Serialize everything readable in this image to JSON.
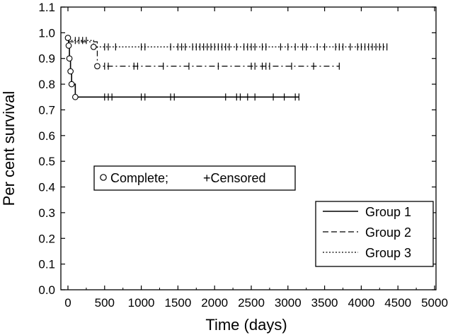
{
  "chart_data": {
    "type": "line",
    "title": "",
    "xlabel": "Time (days)",
    "ylabel": "Per cent survival",
    "xlim": [
      0,
      5000
    ],
    "ylim": [
      0,
      1.1
    ],
    "xticks": [
      0,
      500,
      1000,
      1500,
      2000,
      2500,
      3000,
      3500,
      4000,
      4500,
      5000
    ],
    "yticks": [
      0.0,
      0.1,
      0.2,
      0.3,
      0.4,
      0.5,
      0.6,
      0.7,
      0.8,
      0.9,
      1.0,
      1.1
    ],
    "xtick_labels": [
      "0",
      "500",
      "1000",
      "1500",
      "2000",
      "2500",
      "3000",
      "3500",
      "4000",
      "4500",
      "5000"
    ],
    "ytick_labels": [
      "0.0",
      "0.1",
      "0.2",
      "0.3",
      "0.4",
      "0.5",
      "0.6",
      "0.7",
      "0.8",
      "0.9",
      "1.0",
      "1.1"
    ],
    "grid": false,
    "marker_legend": {
      "complete_label": "Complete;",
      "censored_label": "+Censored",
      "placement": "center-left"
    },
    "legend": {
      "placement": "bottom-right"
    },
    "series": [
      {
        "name": "Group 1",
        "linestyle": "solid",
        "steps": [
          [
            0,
            0.98
          ],
          [
            10,
            0.95
          ],
          [
            20,
            0.9
          ],
          [
            35,
            0.85
          ],
          [
            50,
            0.8
          ],
          [
            100,
            0.75
          ],
          [
            3150,
            0.75
          ]
        ],
        "complete": [
          [
            0,
            0.98
          ],
          [
            10,
            0.95
          ],
          [
            20,
            0.9
          ],
          [
            35,
            0.85
          ],
          [
            50,
            0.8
          ],
          [
            100,
            0.75
          ]
        ],
        "censored_x": [
          500,
          550,
          600,
          1000,
          1050,
          1400,
          1450,
          2150,
          2300,
          2350,
          2450,
          2550,
          2800,
          2950,
          3100,
          3150
        ]
      },
      {
        "name": "Group 2",
        "linestyle": "dash-dot",
        "steps": [
          [
            0,
            0.965
          ],
          [
            400,
            0.87
          ],
          [
            3700,
            0.87
          ]
        ],
        "complete": [
          [
            400,
            0.87
          ]
        ],
        "censored_x": [
          500,
          550,
          900,
          950,
          1300,
          1650,
          2050,
          2500,
          2550,
          2650,
          2700,
          2750,
          3050,
          3350,
          3700
        ]
      },
      {
        "name": "Group 3",
        "linestyle": "dotted",
        "steps": [
          [
            0,
            0.97
          ],
          [
            350,
            0.945
          ],
          [
            4350,
            0.945
          ]
        ],
        "complete": [
          [
            350,
            0.945
          ]
        ],
        "censored_x": [
          100,
          150,
          200,
          250,
          500,
          550,
          650,
          1000,
          1050,
          1400,
          1500,
          1550,
          1600,
          1700,
          1750,
          1800,
          1850,
          1900,
          1950,
          2000,
          2050,
          2100,
          2150,
          2200,
          2300,
          2400,
          2450,
          2500,
          2550,
          2650,
          2700,
          2900,
          3000,
          3100,
          3200,
          3250,
          3400,
          3500,
          3650,
          3700,
          3750,
          3850,
          3950,
          4000,
          4050,
          4100,
          4150,
          4200,
          4250,
          4300,
          4350
        ]
      }
    ]
  }
}
